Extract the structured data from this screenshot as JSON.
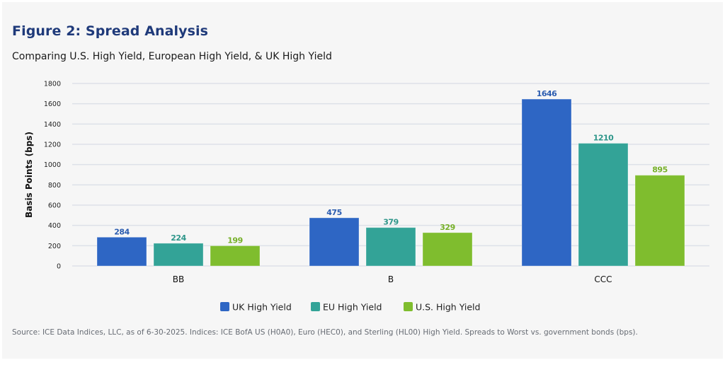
{
  "header": {
    "title": "Figure 2: Spread Analysis",
    "subtitle": "Comparing U.S. High Yield, European High Yield, & UK High Yield"
  },
  "footer": {
    "source": "Source: ICE Data Indices, LLC, as of 6-30-2025. Indices: ICE BofA US (H0A0), Euro (HEC0), and Sterling (HL00) High Yield. Spreads to Worst vs. government bonds (bps)."
  },
  "chart_data": {
    "type": "bar",
    "title": "Figure 2: Spread Analysis",
    "subtitle": "Comparing U.S. High Yield, European High Yield, & UK High Yield",
    "xlabel": "",
    "ylabel": "Basis Points (bps)",
    "ylim": [
      0,
      1800
    ],
    "yticks": [
      0,
      200,
      400,
      600,
      800,
      1000,
      1200,
      1400,
      1600,
      1800
    ],
    "grid": true,
    "legend_position": "bottom-center",
    "categories": [
      "BB",
      "B",
      "CCC"
    ],
    "series": [
      {
        "name": "UK High Yield",
        "color": "#2e66c4",
        "label_color": "#2b5cb0",
        "values": [
          284,
          475,
          1646
        ]
      },
      {
        "name": "EU High Yield",
        "color": "#33a397",
        "label_color": "#2e968a",
        "values": [
          224,
          379,
          1210
        ]
      },
      {
        "name": "U.S. High Yield",
        "color": "#7fbd2e",
        "label_color": "#76b028",
        "values": [
          199,
          329,
          895
        ]
      }
    ]
  }
}
